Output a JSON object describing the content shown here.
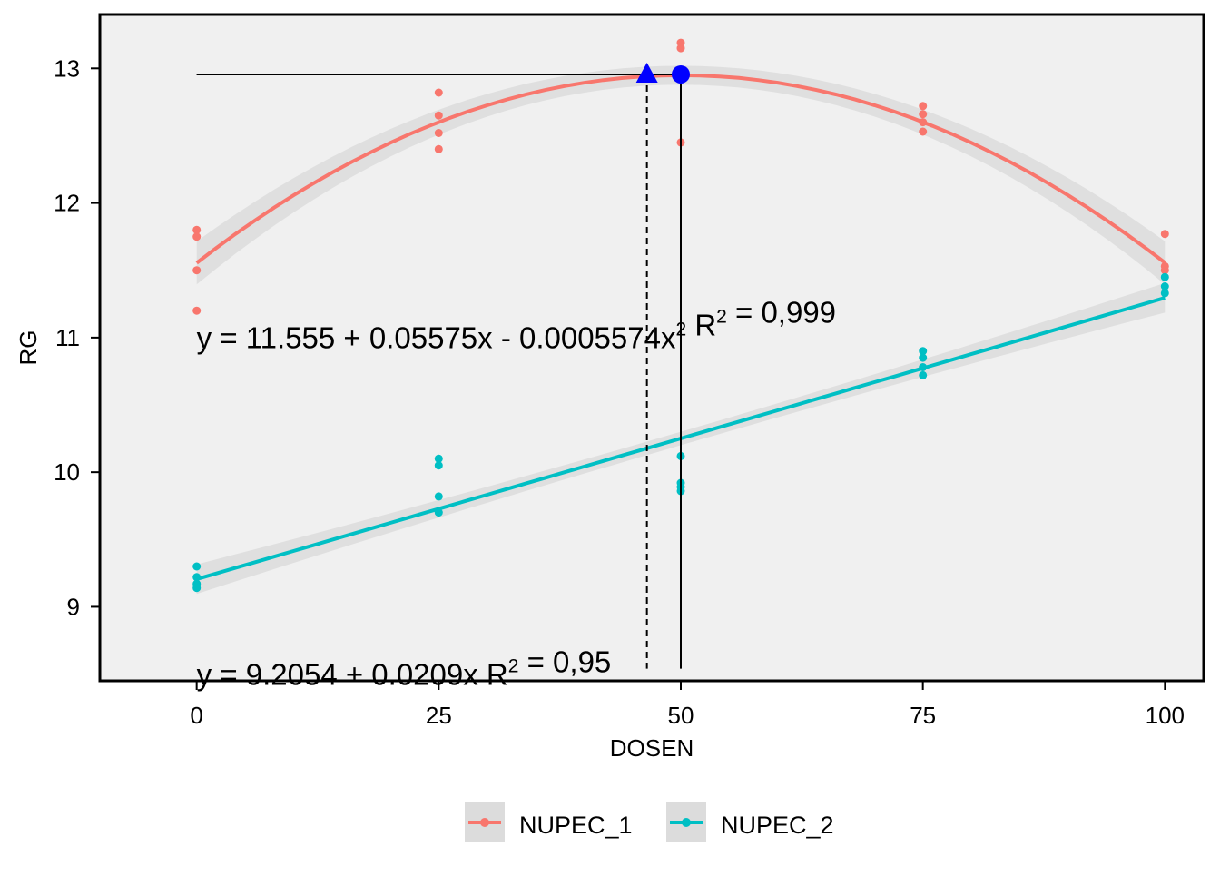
{
  "chart_data": {
    "type": "scatter",
    "xlabel": "DOSEN",
    "ylabel": "RG",
    "xlim": [
      -10,
      104
    ],
    "ylim": [
      8.45,
      13.4
    ],
    "x_ticks": [
      0,
      25,
      50,
      75,
      100
    ],
    "x_tick_labels": [
      "0",
      "25",
      "50",
      "75",
      "100"
    ],
    "y_ticks": [
      9,
      10,
      11,
      12,
      13
    ],
    "y_tick_labels": [
      "9",
      "10",
      "11",
      "12",
      "13"
    ],
    "grid": false,
    "legend_position": "bottom",
    "panel_color": "#f0f0f0",
    "band_color": "#dcdcdc",
    "series": [
      {
        "name": "NUPEC_1",
        "color": "#f8766d",
        "fit": {
          "type": "quadratic",
          "intercept": 11.555,
          "b1": 0.05575,
          "b2": -0.0005574
        },
        "points": [
          [
            0,
            11.8
          ],
          [
            0,
            11.75
          ],
          [
            0,
            11.5
          ],
          [
            0,
            11.2
          ],
          [
            25,
            12.82
          ],
          [
            25,
            12.65
          ],
          [
            25,
            12.52
          ],
          [
            25,
            12.4
          ],
          [
            50,
            13.19
          ],
          [
            50,
            13.15
          ],
          [
            50,
            12.95
          ],
          [
            50,
            12.45
          ],
          [
            75,
            12.72
          ],
          [
            75,
            12.66
          ],
          [
            75,
            12.6
          ],
          [
            75,
            12.53
          ],
          [
            100,
            11.77
          ],
          [
            100,
            11.53
          ],
          [
            100,
            11.5
          ]
        ]
      },
      {
        "name": "NUPEC_2",
        "color": "#00bfc4",
        "fit": {
          "type": "linear",
          "intercept": 9.2054,
          "b1": 0.0209
        },
        "points": [
          [
            0,
            9.3
          ],
          [
            0,
            9.22
          ],
          [
            0,
            9.17
          ],
          [
            0,
            9.14
          ],
          [
            25,
            10.1
          ],
          [
            25,
            10.05
          ],
          [
            25,
            9.82
          ],
          [
            25,
            9.7
          ],
          [
            50,
            10.12
          ],
          [
            50,
            9.92
          ],
          [
            50,
            9.89
          ],
          [
            50,
            9.86
          ],
          [
            75,
            10.9
          ],
          [
            75,
            10.85
          ],
          [
            75,
            10.78
          ],
          [
            75,
            10.72
          ],
          [
            100,
            11.45
          ],
          [
            100,
            11.38
          ],
          [
            100,
            11.33
          ]
        ]
      }
    ],
    "annotations": {
      "triangle_marker": {
        "x": 46.5,
        "y": 12.955,
        "color": "#0000ff"
      },
      "circle_marker": {
        "x": 50,
        "y": 12.955,
        "color": "#0000ff"
      },
      "hline_y": 12.955,
      "vline_dashed_x": 46.5,
      "vline_solid_x": 50,
      "vline_bottom_y": 8.5
    },
    "equations": [
      {
        "base": "y = 11.555 + 0.05575x - 0.0005574x",
        "sup": "2",
        "mid": "  R",
        "sup2": "2",
        "tail": " = 0,999",
        "x": 0,
        "y": 10.92
      },
      {
        "base": "y = 9.2054 + 0.0209x R",
        "sup": "2",
        "mid": "",
        "sup2": "",
        "tail": " = 0,95",
        "x": 0,
        "y": 8.42
      }
    ]
  }
}
